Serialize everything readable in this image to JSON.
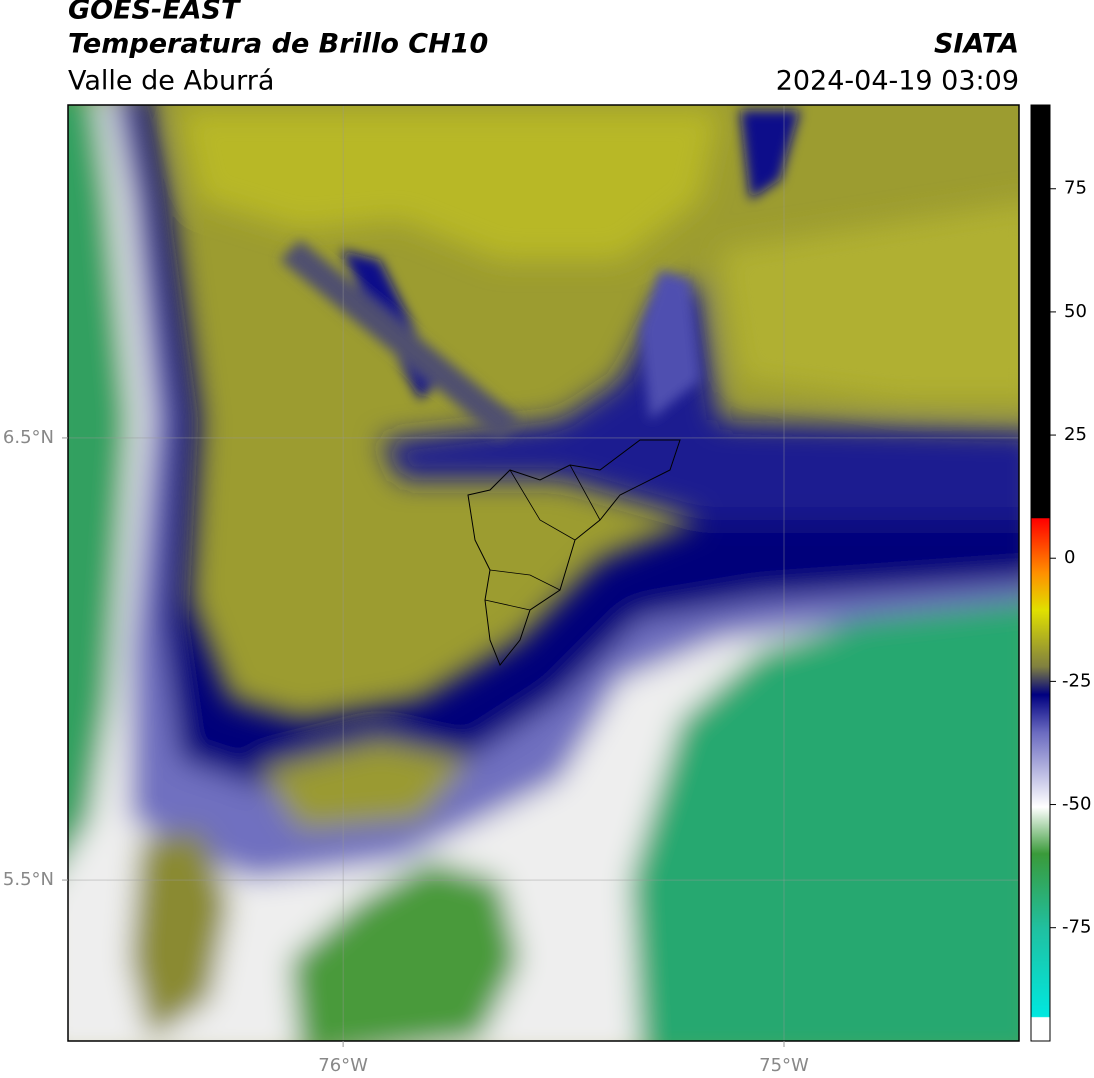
{
  "header": {
    "title": "GOES-EAST",
    "subtitle": "Temperatura de Brillo CH10",
    "region": "Valle de Aburrá",
    "source": "SIATA",
    "datetime": "2024-04-19 03:09"
  },
  "map": {
    "xlim": [
      -76.624,
      -74.467
    ],
    "ylim": [
      5.136,
      7.253
    ],
    "xticks": [
      {
        "value": -76,
        "label": "76°W"
      },
      {
        "value": -75,
        "label": "75°W"
      }
    ],
    "yticks": [
      {
        "value": 6.5,
        "label": "6.5°N"
      },
      {
        "value": 5.5,
        "label": "5.5°N"
      }
    ],
    "grid": true
  },
  "colorbar": {
    "lim": [
      -98,
      92
    ],
    "ticks": [
      75,
      50,
      25,
      0,
      -25,
      -50,
      -75
    ]
  }
}
